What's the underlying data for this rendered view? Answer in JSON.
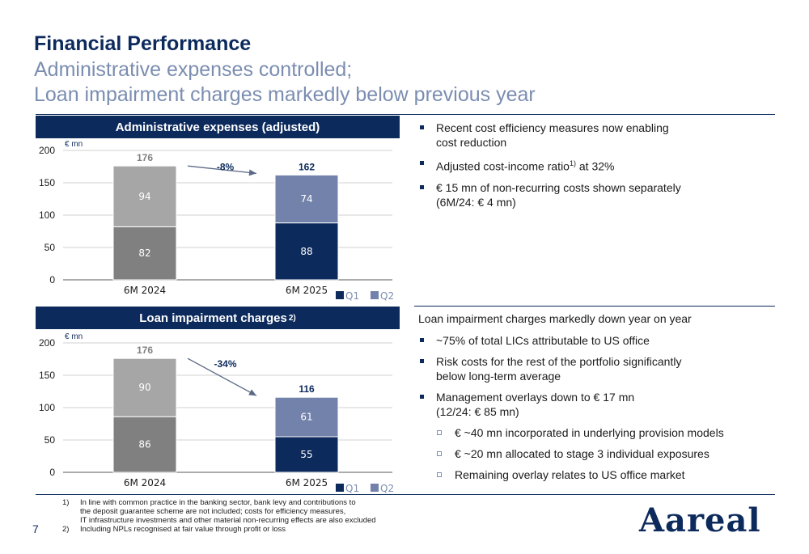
{
  "header": {
    "title": "Financial Performance",
    "subtitle_line1": "Administrative expenses controlled;",
    "subtitle_line2": "Loan impairment charges markedly below previous year"
  },
  "colors": {
    "navy": "#0c2a5c",
    "q1_2024": "#808080",
    "q2_2024": "#a6a6a6",
    "q1_2025": "#0c2a5c",
    "q2_2025": "#7382ab",
    "light_blue": "#7b8db1"
  },
  "admin_panel": {
    "heading": "Administrative expenses (adjusted)"
  },
  "lic_panel": {
    "heading": "Loan impairment charges",
    "heading_sup": "2)"
  },
  "chart_data": [
    {
      "type": "bar",
      "title": "Administrative expenses (adjusted)",
      "unit": "€ mn",
      "categories": [
        "6M 2024",
        "6M 2025"
      ],
      "series": [
        {
          "name": "Q1",
          "values": [
            82,
            88
          ]
        },
        {
          "name": "Q2",
          "values": [
            94,
            74
          ]
        }
      ],
      "totals": [
        "176",
        "162"
      ],
      "change": "-8%",
      "ylim": [
        0,
        200
      ],
      "yticks": [
        0,
        50,
        100,
        150,
        200
      ],
      "stacked": true,
      "legend": "bottom-right",
      "grid": true
    },
    {
      "type": "bar",
      "title": "Loan impairment charges",
      "unit": "€ mn",
      "categories": [
        "6M 2024",
        "6M 2025"
      ],
      "series": [
        {
          "name": "Q1",
          "values": [
            86,
            55
          ]
        },
        {
          "name": "Q2",
          "values": [
            90,
            61
          ]
        }
      ],
      "totals": [
        "176",
        "116"
      ],
      "change": "-34%",
      "ylim": [
        0,
        200
      ],
      "yticks": [
        0,
        50,
        100,
        150,
        200
      ],
      "stacked": true,
      "legend": "bottom-right",
      "grid": true
    }
  ],
  "admin_bullets": {
    "b1_line1": "Recent cost efficiency measures now enabling",
    "b1_line2": "cost reduction",
    "b2_text": "Adjusted cost-income ratio",
    "b2_sup": "1)",
    "b2_tail": " at 32%",
    "b3_line1": "€ 15 mn of non-recurring costs shown separately",
    "b3_line2": "(6M/24: € 4 mn)"
  },
  "lic_bullets": {
    "intro": "Loan impairment charges markedly down year on year",
    "b1": "~75% of total LICs attributable to US office",
    "b2_line1": "Risk costs for the rest of the portfolio significantly",
    "b2_line2": "below long-term average",
    "b3_line1": "Management overlays down to € 17 mn",
    "b3_line2": "(12/24: € 85 mn)",
    "s1": "€ ~40 mn incorporated in underlying provision models",
    "s2": "€ ~20 mn allocated to stage 3 individual exposures",
    "s3": "Remaining overlay relates to US office market"
  },
  "footnotes": {
    "n1": "1)",
    "f1_line1": "In line with common practice in the banking sector, bank levy and contributions to",
    "f1_line2": "the deposit guarantee scheme are not included; costs for efficiency measures,",
    "f1_line3": "IT infrastructure investments and other material non-recurring effects are also excluded",
    "n2": "2)",
    "f2": "Including NPLs recognised at fair value through profit or loss"
  },
  "page_number": "7",
  "logo_text": "Aareal"
}
